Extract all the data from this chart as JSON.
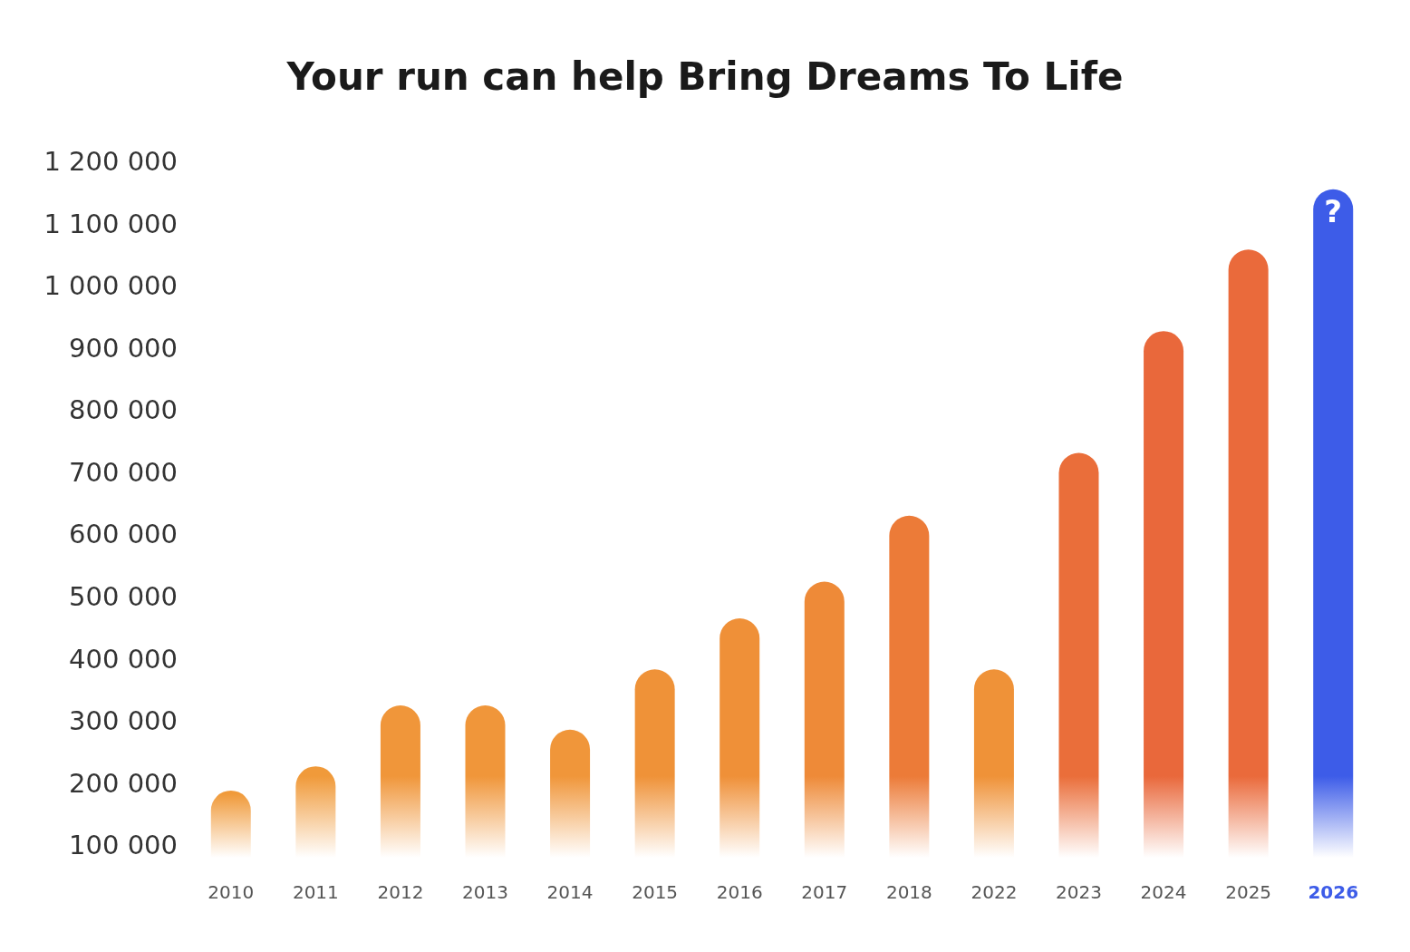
{
  "chart_data": {
    "type": "bar",
    "title": "Your run can help Bring Dreams To Life",
    "categories": [
      "2010",
      "2011",
      "2012",
      "2013",
      "2014",
      "2015",
      "2016",
      "2017",
      "2018",
      "2022",
      "2023",
      "2024",
      "2025",
      "2026"
    ],
    "values": [
      188000,
      227000,
      325000,
      325000,
      286000,
      383000,
      465000,
      524000,
      630000,
      383000,
      731000,
      927000,
      1058000,
      1155000
    ],
    "colors": [
      "#f09a3a",
      "#f09a3a",
      "#f0963a",
      "#f0963a",
      "#f0963a",
      "#ef9238",
      "#ef9038",
      "#ee8a38",
      "#ec7b38",
      "#ef9238",
      "#ea6e3a",
      "#e9683b",
      "#ea6a3b",
      "#3d5ce8"
    ],
    "ylim": [
      80000,
      1200000
    ],
    "yticks": [
      {
        "value": 100000,
        "label": "100 000"
      },
      {
        "value": 200000,
        "label": "200 000"
      },
      {
        "value": 300000,
        "label": "300 000"
      },
      {
        "value": 400000,
        "label": "400 000"
      },
      {
        "value": 500000,
        "label": "500 000"
      },
      {
        "value": 600000,
        "label": "600 000"
      },
      {
        "value": 700000,
        "label": "700 000"
      },
      {
        "value": 800000,
        "label": "800 000"
      },
      {
        "value": 900000,
        "label": "900 000"
      },
      {
        "value": 1000000,
        "label": "1 000 000"
      },
      {
        "value": 1100000,
        "label": "1 100 000"
      },
      {
        "value": 1200000,
        "label": "1 200 000"
      }
    ],
    "annotations": [
      {
        "text": "?",
        "x": "2026",
        "y": 1155000
      }
    ],
    "grid": false
  }
}
